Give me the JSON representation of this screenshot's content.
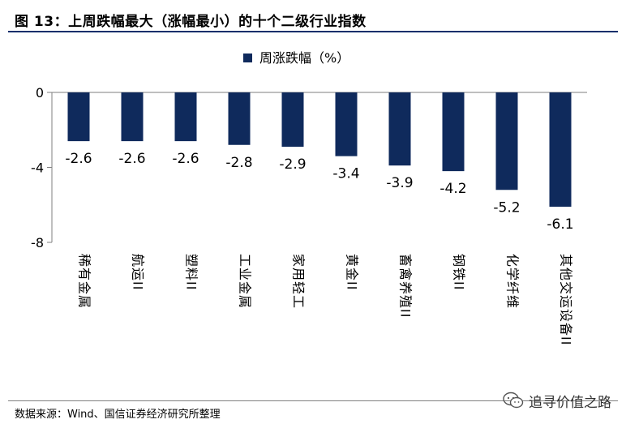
{
  "figure": {
    "title": "图 13：上周跌幅最大（涨幅最小）的十个二级行业指数",
    "source": "数据来源：Wind、国信证券经济研究所整理",
    "watermark": "追寻价值之路"
  },
  "colors": {
    "bar": "#0f2a5c",
    "axis": "#7f7f7f",
    "rule": "#0f2f6b"
  },
  "chart_data": {
    "type": "bar",
    "title": "",
    "xlabel": "",
    "ylabel": "",
    "legend": {
      "position": "top",
      "entries": [
        "周涨跌幅（%）"
      ]
    },
    "categories": [
      "稀有金属",
      "航运II",
      "塑料II",
      "工业金属",
      "家用轻工",
      "黄金II",
      "畜禽养殖II",
      "钢铁II",
      "化学纤维",
      "其他交运设备II"
    ],
    "series": [
      {
        "name": "周涨跌幅（%）",
        "values": [
          -2.6,
          -2.6,
          -2.6,
          -2.8,
          -2.9,
          -3.4,
          -3.9,
          -4.2,
          -5.2,
          -6.1
        ]
      }
    ],
    "data_labels": [
      "-2.6",
      "-2.6",
      "-2.6",
      "-2.8",
      "-2.9",
      "-3.4",
      "-3.9",
      "-4.2",
      "-5.2",
      "-6.1"
    ],
    "ylim": [
      -8,
      0
    ],
    "yticks": [
      0,
      -4,
      -8
    ],
    "grid": false
  }
}
